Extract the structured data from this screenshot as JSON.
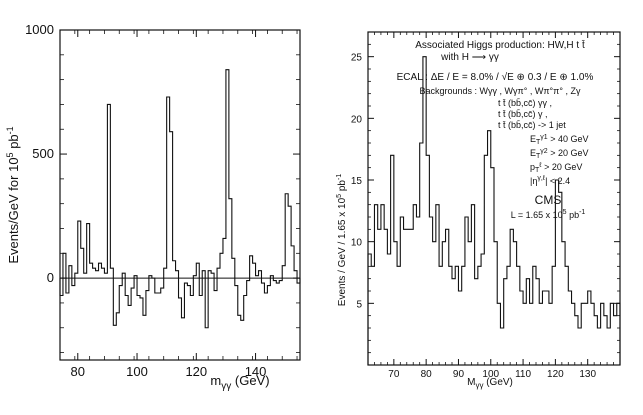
{
  "chart_data": [
    {
      "type": "histogram",
      "xlabel": "m_γγ (GeV)",
      "ylabel": "Events/GeV for 10^5 pb^-1",
      "xlim": [
        74,
        155
      ],
      "ylim": [
        -330,
        1000
      ],
      "xticks": [
        80,
        100,
        120,
        140
      ],
      "yticks": [
        0,
        500,
        1000
      ],
      "zero_line": true,
      "bin_width": 1,
      "x_start": 74,
      "values": [
        -70,
        100,
        -60,
        50,
        -30,
        20,
        230,
        120,
        20,
        220,
        60,
        40,
        30,
        60,
        40,
        20,
        700,
        40,
        -190,
        -140,
        -30,
        20,
        -70,
        -110,
        -40,
        10,
        -70,
        -80,
        -150,
        -50,
        10,
        0,
        -60,
        -60,
        -40,
        40,
        730,
        590,
        70,
        30,
        -80,
        -160,
        -20,
        -30,
        -70,
        10,
        60,
        -70,
        30,
        -200,
        30,
        20,
        -50,
        40,
        100,
        160,
        840,
        320,
        80,
        -30,
        -150,
        -170,
        -70,
        -10,
        90,
        60,
        10,
        30,
        -20,
        -60,
        -30,
        10,
        -10,
        -20,
        -10,
        50,
        340,
        290,
        130,
        30,
        -20
      ]
    },
    {
      "type": "histogram",
      "xlabel": "M_γγ (GeV)",
      "ylabel": "Events / GeV / 1.65 x 10^5 pb^-1",
      "xlim": [
        62,
        140
      ],
      "ylim": [
        0,
        27
      ],
      "xticks": [
        70,
        80,
        90,
        100,
        110,
        120,
        130
      ],
      "yticks": [
        5,
        10,
        15,
        20,
        25
      ],
      "bin_width": 1,
      "x_start": 62,
      "values": [
        9,
        8,
        13,
        11,
        13,
        11,
        9,
        17,
        10,
        8,
        12,
        11,
        11,
        11,
        13,
        12,
        18,
        25,
        17,
        12,
        10,
        13,
        8,
        10,
        11,
        8,
        7,
        8,
        6,
        8,
        12,
        10,
        13,
        7,
        8,
        9,
        17,
        19,
        16,
        10,
        5,
        3,
        7,
        8,
        11,
        10,
        8,
        6,
        5,
        7,
        5,
        8,
        7,
        5,
        6,
        6,
        5,
        8,
        15,
        14,
        10,
        8,
        6,
        5,
        4,
        3,
        5,
        5,
        6,
        5,
        4,
        3,
        5,
        4,
        3,
        5,
        4,
        5
      ]
    }
  ],
  "annotations": {
    "line1": "Associated Higgs production: HW,H t t̄",
    "line2": "with   H ⟶ γγ",
    "ecal": "ECAL : ΔE / E = 8.0% / √E ⊕ 0.3 / E ⊕ 1.0%",
    "bkg_label": "Backgrounds : Wγγ , Wγπ° , Wπ°π° , Zγ",
    "bkg2": "t t̄ (bb̄,cc̄) γγ ,",
    "bkg3": "t t̄ (bb̄,cc̄) γ ,",
    "bkg4": "t t̄ (bb̄,cc̄) -> 1 jet",
    "cut1": "E_T^γ1 > 40 GeV",
    "cut2": "E_T^γ2 > 20 GeV",
    "cut3": "p_T^ℓ > 20 GeV",
    "cut4": "|η^γ,ℓ| < 2.4",
    "cms": "CMS",
    "lumi": "L = 1.65 x 10^5 pb^-1"
  },
  "colors": {
    "ink": "#111111",
    "background": "#ffffff"
  }
}
